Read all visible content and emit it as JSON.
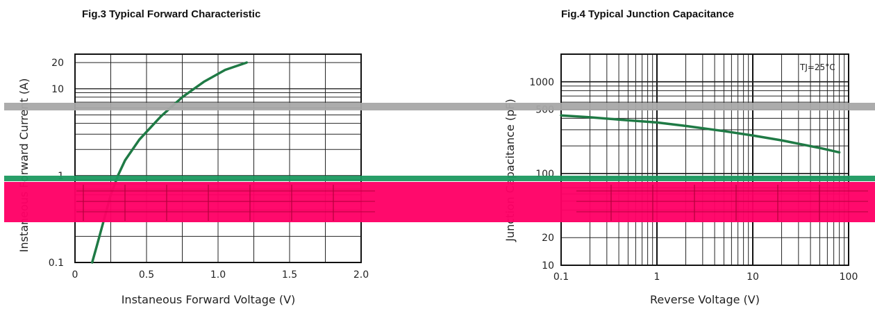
{
  "chart_data": [
    {
      "type": "line",
      "title": "Fig.3 Typical Forward Characteristic",
      "xlabel": "Instaneous Forward Voltage (V)",
      "ylabel": "Instaneous Forward Current (A)",
      "xscale": "linear",
      "yscale": "log",
      "xlim": [
        0,
        2.0
      ],
      "ylim": [
        0.1,
        25
      ],
      "xticks": [
        0,
        0.5,
        1.0,
        1.5,
        2.0
      ],
      "xticklabels": [
        "0",
        "0.5",
        "1.0",
        "1.5",
        "2.0"
      ],
      "yticks": [
        0.1,
        1,
        10,
        20
      ],
      "yticklabels": [
        "0.1",
        "1",
        "10",
        "20"
      ],
      "grid": true,
      "series": [
        {
          "color": "#1f7a45",
          "x": [
            0.12,
            0.15,
            0.2,
            0.25,
            0.3,
            0.35,
            0.45,
            0.6,
            0.75,
            0.9,
            1.05,
            1.2
          ],
          "y": [
            0.1,
            0.15,
            0.3,
            0.6,
            1.0,
            1.5,
            2.6,
            4.8,
            8.0,
            12.0,
            16.5,
            20.0
          ]
        }
      ]
    },
    {
      "type": "line",
      "title": "Fig.4 Typical Junction Capacitance",
      "xlabel": "Reverse  Voltage (V)",
      "ylabel": "Junction Capacitance (pF)",
      "xscale": "log",
      "yscale": "log",
      "xlim": [
        0.1,
        100
      ],
      "ylim": [
        10,
        2000
      ],
      "xticks": [
        0.1,
        1,
        10,
        100
      ],
      "xticklabels": [
        "0.1",
        "1",
        "10",
        "100"
      ],
      "yticks": [
        10,
        20,
        100,
        500,
        1000
      ],
      "yticklabels": [
        "10",
        "20",
        "100",
        "500",
        "1000"
      ],
      "grid": true,
      "annotation": "TJ=25°C",
      "series": [
        {
          "color": "#1f7a45",
          "x": [
            0.1,
            0.2,
            0.5,
            1,
            2,
            5,
            10,
            20,
            50,
            80
          ],
          "y": [
            430,
            410,
            380,
            360,
            330,
            290,
            260,
            230,
            190,
            170
          ]
        }
      ]
    }
  ],
  "colors": {
    "curve": "#1f7a45",
    "gray_band": "#a8a8a8",
    "green_band": "#1c9960",
    "red_band": "#ff0066"
  }
}
